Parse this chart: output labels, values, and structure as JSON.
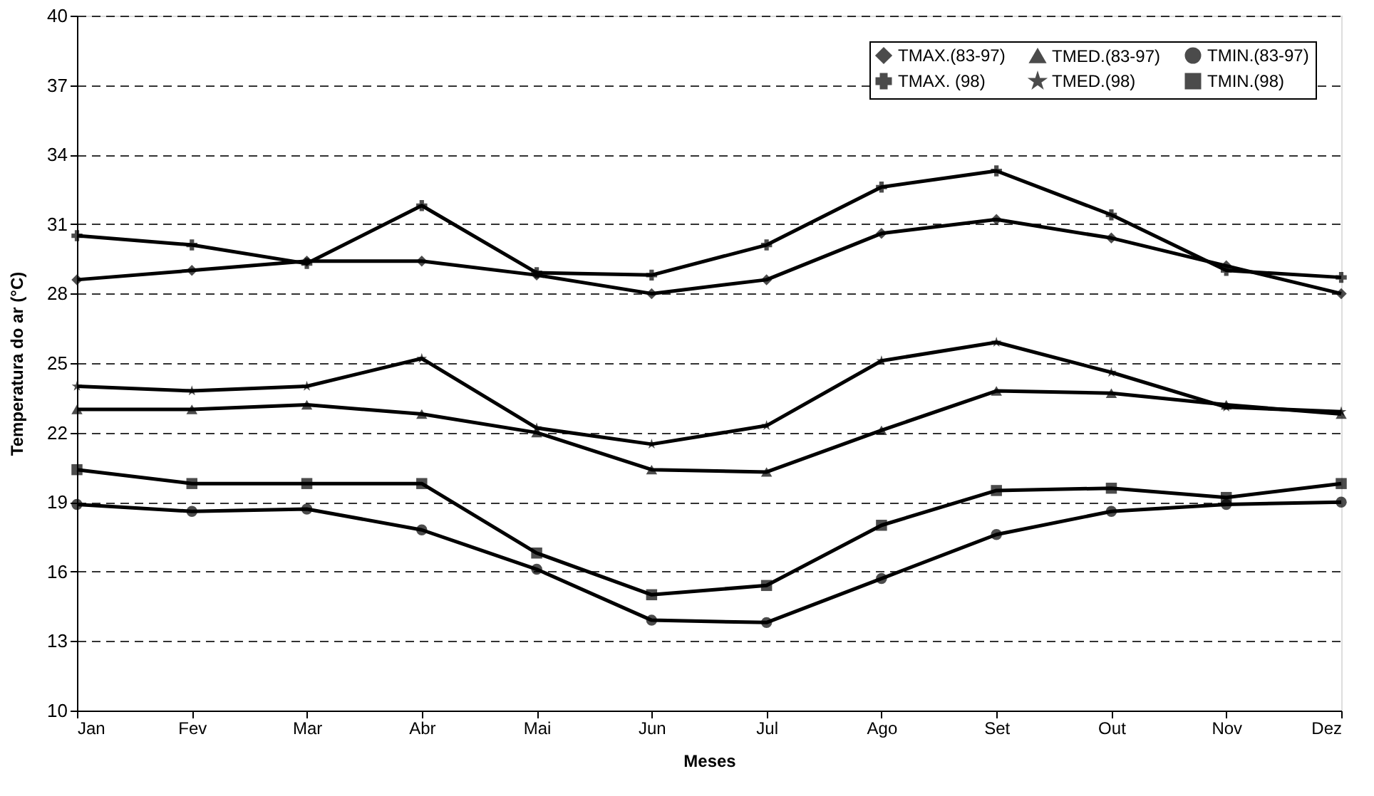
{
  "chart_data": {
    "type": "line",
    "xlabel": "Meses",
    "ylabel": "Temperatura do ar (°C)",
    "categories": [
      "Jan",
      "Fev",
      "Mar",
      "Abr",
      "Mai",
      "Jun",
      "Jul",
      "Ago",
      "Set",
      "Out",
      "Nov",
      "Dez"
    ],
    "ylim": [
      10,
      40
    ],
    "yticks": [
      10,
      13,
      16,
      19,
      22,
      25,
      28,
      31,
      34,
      37,
      40
    ],
    "grid": "y",
    "legend": "top right",
    "line_style": "solid",
    "series": [
      {
        "name": "TMAX.(83-97)",
        "color": "#000000",
        "marker": "diamond",
        "values": [
          28.6,
          29.0,
          29.4,
          29.4,
          28.8,
          28.0,
          28.6,
          30.6,
          31.2,
          30.4,
          29.2,
          28.0
        ]
      },
      {
        "name": "TMAX. (98)",
        "color": "#000000",
        "marker": "cross",
        "values": [
          30.5,
          30.1,
          29.3,
          31.8,
          28.9,
          28.8,
          30.1,
          32.6,
          33.3,
          31.4,
          29.0,
          28.7
        ]
      },
      {
        "name": "TMED.(83-97)",
        "color": "#000000",
        "marker": "triangle",
        "values": [
          23.0,
          23.0,
          23.2,
          22.8,
          22.0,
          20.4,
          20.3,
          22.1,
          23.8,
          23.7,
          23.2,
          22.8
        ]
      },
      {
        "name": "TMED.(98)",
        "color": "#000000",
        "marker": "star",
        "values": [
          24.0,
          23.8,
          24.0,
          25.2,
          22.2,
          21.5,
          22.3,
          25.1,
          25.9,
          24.6,
          23.1,
          22.9
        ]
      },
      {
        "name": "TMIN.(83-97)",
        "color": "#000000",
        "marker": "circle",
        "values": [
          18.9,
          18.6,
          18.7,
          17.8,
          16.1,
          13.9,
          13.8,
          15.7,
          17.6,
          18.6,
          18.9,
          19.0
        ]
      },
      {
        "name": "TMIN.(98)",
        "color": "#000000",
        "marker": "square",
        "values": [
          20.4,
          19.8,
          19.8,
          19.8,
          16.8,
          15.0,
          15.4,
          18.0,
          19.5,
          19.6,
          19.2,
          19.8
        ]
      }
    ]
  }
}
